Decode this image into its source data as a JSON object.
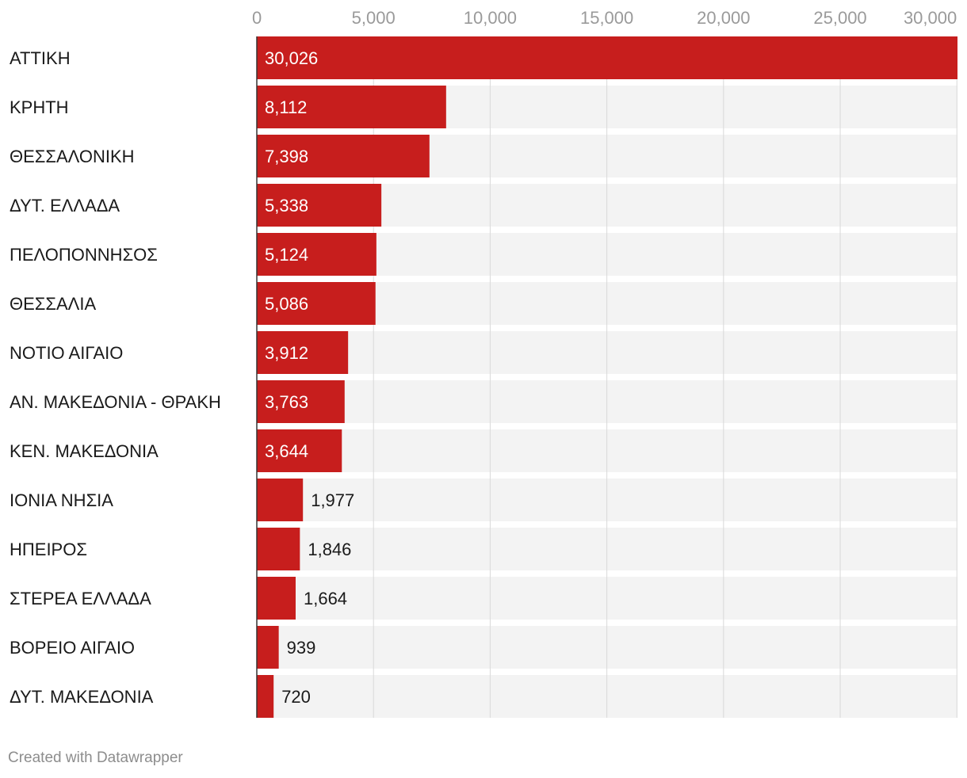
{
  "chart_data": {
    "type": "bar",
    "orientation": "horizontal",
    "categories": [
      "ΑΤΤΙΚΗ",
      "ΚΡΗΤΗ",
      "ΘΕΣΣΑΛΟΝΙΚΗ",
      "ΔΥΤ. ΕΛΛΑΔΑ",
      "ΠΕΛΟΠΟΝΝΗΣΟΣ",
      "ΘΕΣΣΑΛΙΑ",
      "ΝΟΤΙΟ ΑΙΓΑΙΟ",
      "ΑΝ. ΜΑΚΕΔΟΝΙΑ - ΘΡΑΚΗ",
      "ΚΕΝ. ΜΑΚΕΔΟΝΙΑ",
      "ΙΟΝΙΑ ΝΗΣΙΑ",
      "ΗΠΕΙΡΟΣ",
      "ΣΤΕΡΕΑ ΕΛΛΑΔΑ",
      "ΒΟΡΕΙΟ ΑΙΓΑΙΟ",
      "ΔΥΤ. ΜΑΚΕΔΟΝΙΑ"
    ],
    "values": [
      30026,
      8112,
      7398,
      5338,
      5124,
      5086,
      3912,
      3763,
      3644,
      1977,
      1846,
      1664,
      939,
      720
    ],
    "value_labels": [
      "30,026",
      "8,112",
      "7,398",
      "5,338",
      "5,124",
      "5,086",
      "3,912",
      "3,763",
      "3,644",
      "1,977",
      "1,846",
      "1,664",
      "939",
      "720"
    ],
    "xlim": [
      0,
      30026
    ],
    "x_ticks": [
      0,
      5000,
      10000,
      15000,
      20000,
      25000,
      30000
    ],
    "x_tick_labels": [
      "0",
      "5,000",
      "10,000",
      "15,000",
      "20,000",
      "25,000",
      "30,000"
    ],
    "axis_position": "top",
    "grid": true,
    "colors": {
      "bar": "#c71e1d",
      "background_band": "#f3f3f3",
      "grid": "#d9d9d9",
      "axis_line": "#333333",
      "tick_text": "#9a9a9a",
      "label_inside": "#ffffff",
      "label_outside": "#1a1a1a"
    }
  },
  "footer": {
    "credit": "Created with Datawrapper"
  }
}
